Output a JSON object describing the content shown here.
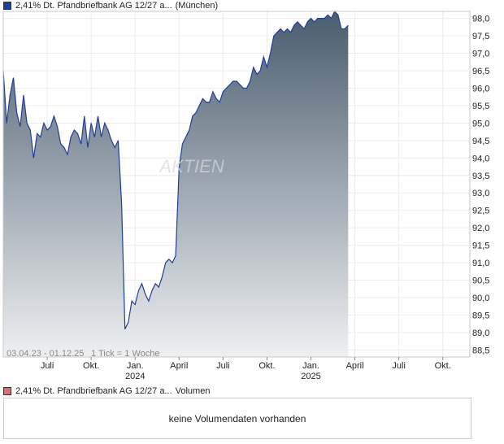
{
  "legend": {
    "price_label": "2,41% Dt. Pfandbriefbank AG 12/27 a...",
    "exchange_label": "(München)",
    "price_color": "#1f3e9c",
    "volume_label": "2,41% Dt. Pfandbriefbank AG 12/27 a...",
    "volume_suffix": "Volumen",
    "volume_color": "#d87070"
  },
  "watermark": "AKTIEN",
  "footer": {
    "range_text": "03.04.23 - 01.12.25",
    "tick_text": "1 Tick = 1 Woche"
  },
  "volume": {
    "message": "keine Volumendaten vorhanden"
  },
  "chart_data": {
    "type": "area",
    "ylim": [
      88.3,
      98.2
    ],
    "y_ticks": [
      "98,0",
      "97,5",
      "97,0",
      "96,5",
      "96,0",
      "95,5",
      "95,0",
      "94,5",
      "94,0",
      "93,5",
      "93,0",
      "92,5",
      "92,0",
      "91,5",
      "91,0",
      "90,5",
      "90,0",
      "89,5",
      "89,0",
      "88,5"
    ],
    "x_ticks": [
      {
        "label": "Juli",
        "week": 13
      },
      {
        "label": "Okt.",
        "week": 26
      },
      {
        "label": "Jan.",
        "year": "2024",
        "week": 39
      },
      {
        "label": "April",
        "week": 52
      },
      {
        "label": "Juli",
        "week": 65
      },
      {
        "label": "Okt.",
        "week": 78
      },
      {
        "label": "Jan.",
        "year": "2025",
        "week": 91
      },
      {
        "label": "April",
        "week": 104
      },
      {
        "label": "Juli",
        "week": 117
      },
      {
        "label": "Okt.",
        "week": 130
      }
    ],
    "weeks_total": 139,
    "series": [
      {
        "line_color": "#1f3e9c",
        "fill_top": "#4a5d6e",
        "fill_bottom": "#eef0f2",
        "values": [
          96.5,
          95.0,
          95.8,
          96.3,
          95.3,
          94.9,
          95.8,
          95.0,
          94.8,
          94.0,
          94.7,
          94.6,
          95.0,
          94.8,
          94.9,
          95.2,
          94.9,
          94.4,
          94.3,
          94.1,
          94.6,
          94.8,
          94.7,
          94.4,
          95.2,
          94.3,
          95.0,
          94.6,
          95.2,
          94.6,
          95.0,
          94.8,
          94.5,
          94.3,
          94.5,
          92.7,
          89.1,
          89.3,
          89.9,
          89.8,
          90.2,
          90.4,
          90.1,
          89.9,
          90.2,
          90.4,
          90.3,
          90.6,
          91.0,
          91.1,
          91.0,
          91.2,
          93.7,
          94.4,
          94.6,
          94.8,
          95.2,
          95.3,
          95.5,
          95.7,
          95.6,
          95.6,
          95.9,
          95.7,
          95.6,
          95.9,
          96.0,
          96.1,
          96.2,
          96.2,
          96.1,
          96.0,
          96.0,
          96.2,
          96.6,
          96.4,
          96.5,
          96.9,
          96.6,
          97.0,
          97.5,
          97.6,
          97.7,
          97.6,
          97.7,
          97.6,
          97.8,
          97.9,
          97.8,
          97.7,
          97.9,
          98.0,
          97.9,
          98.0,
          98.0,
          98.0,
          98.1,
          98.0,
          98.2,
          98.1,
          97.7,
          97.7,
          97.8
        ]
      }
    ]
  }
}
